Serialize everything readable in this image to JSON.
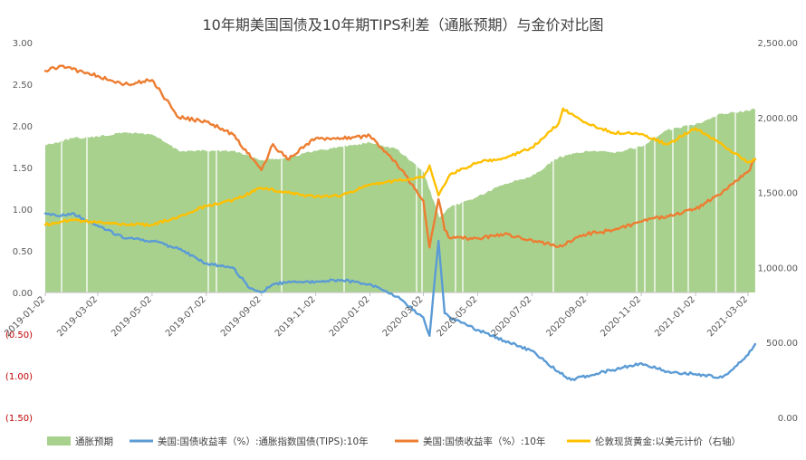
{
  "chart_data": {
    "type": "line",
    "title": "10年期美国国债及10年期TIPS利差（通胀预期）与金价对比图",
    "colors": {
      "inflation": "#A9D18E",
      "tips": "#5B9BD5",
      "nominal": "#ED7D31",
      "gold": "#FFC000",
      "negative_tick": "#C00000",
      "axis_text": "#595959"
    },
    "x_ticks": [
      "2019-01-02",
      "2019-03-02",
      "2019-05-02",
      "2019-07-02",
      "2019-09-02",
      "2019-11-02",
      "2020-01-02",
      "2020-03-02",
      "2020-05-02",
      "2020-07-02",
      "2020-09-02",
      "2020-11-02",
      "2021-01-02",
      "2021-03-02"
    ],
    "y_left": {
      "range": [
        -1.5,
        3.0
      ],
      "ticks": [
        {
          "v": 3.0,
          "label": "3.00"
        },
        {
          "v": 2.5,
          "label": "2.50"
        },
        {
          "v": 2.0,
          "label": "2.00"
        },
        {
          "v": 1.5,
          "label": "1.50"
        },
        {
          "v": 1.0,
          "label": "1.00"
        },
        {
          "v": 0.5,
          "label": "0.50"
        },
        {
          "v": 0.0,
          "label": "0.00"
        },
        {
          "v": -0.5,
          "label": "(0.50)"
        },
        {
          "v": -1.0,
          "label": "(1.00)"
        },
        {
          "v": -1.5,
          "label": "(1.50)"
        }
      ]
    },
    "y_right": {
      "range": [
        0,
        2500
      ],
      "ticks": [
        {
          "v": 2500,
          "label": "2,500.00"
        },
        {
          "v": 2000,
          "label": "2,000.00"
        },
        {
          "v": 1500,
          "label": "1,500.00"
        },
        {
          "v": 1000,
          "label": "1,000.00"
        },
        {
          "v": 500,
          "label": "500.00"
        },
        {
          "v": 0,
          "label": "0.00"
        }
      ]
    },
    "series": [
      {
        "name": "通胀预期",
        "type": "area",
        "axis": "left",
        "x": [
          "2019-01-02",
          "2019-02-01",
          "2019-03-02",
          "2019-04-01",
          "2019-05-02",
          "2019-06-01",
          "2019-07-02",
          "2019-08-01",
          "2019-09-02",
          "2019-10-01",
          "2019-11-02",
          "2019-12-01",
          "2020-01-02",
          "2020-02-01",
          "2020-03-02",
          "2020-03-20",
          "2020-04-01",
          "2020-05-02",
          "2020-06-01",
          "2020-07-02",
          "2020-08-01",
          "2020-09-02",
          "2020-10-01",
          "2020-11-02",
          "2020-12-01",
          "2021-01-02",
          "2021-02-01",
          "2021-03-02",
          "2021-03-10"
        ],
        "values": [
          1.77,
          1.85,
          1.87,
          1.92,
          1.9,
          1.7,
          1.7,
          1.7,
          1.59,
          1.62,
          1.7,
          1.75,
          1.8,
          1.72,
          1.45,
          0.9,
          1.02,
          1.15,
          1.3,
          1.4,
          1.62,
          1.7,
          1.68,
          1.75,
          1.95,
          2.02,
          2.15,
          2.18,
          2.2
        ]
      },
      {
        "name": "美国:国债收益率（%）:通胀指数国债(TIPS):10年",
        "type": "line",
        "axis": "left",
        "x": [
          "2019-01-02",
          "2019-01-20",
          "2019-02-01",
          "2019-03-02",
          "2019-04-01",
          "2019-05-02",
          "2019-06-01",
          "2019-06-20",
          "2019-07-02",
          "2019-08-01",
          "2019-08-20",
          "2019-09-02",
          "2019-09-15",
          "2019-10-01",
          "2019-11-02",
          "2019-12-01",
          "2020-01-02",
          "2020-02-01",
          "2020-03-02",
          "2020-03-09",
          "2020-03-19",
          "2020-03-26",
          "2020-04-01",
          "2020-05-02",
          "2020-06-01",
          "2020-07-02",
          "2020-08-01",
          "2020-08-15",
          "2020-09-02",
          "2020-10-01",
          "2020-11-02",
          "2020-12-01",
          "2021-01-02",
          "2021-02-01",
          "2021-03-02",
          "2021-03-10"
        ],
        "values": [
          0.95,
          0.92,
          0.95,
          0.8,
          0.65,
          0.62,
          0.52,
          0.42,
          0.35,
          0.3,
          0.05,
          0.0,
          0.1,
          0.12,
          0.13,
          0.15,
          0.1,
          -0.05,
          -0.3,
          -0.52,
          0.62,
          -0.25,
          -0.3,
          -0.45,
          -0.58,
          -0.7,
          -0.95,
          -1.05,
          -1.0,
          -0.93,
          -0.85,
          -0.95,
          -0.98,
          -1.02,
          -0.75,
          -0.62
        ]
      },
      {
        "name": "美国:国债收益率（%）:10年",
        "type": "line",
        "axis": "left",
        "x": [
          "2019-01-02",
          "2019-01-20",
          "2019-02-01",
          "2019-03-02",
          "2019-04-01",
          "2019-05-02",
          "2019-06-01",
          "2019-07-02",
          "2019-08-01",
          "2019-09-02",
          "2019-09-15",
          "2019-10-01",
          "2019-11-02",
          "2019-12-01",
          "2020-01-02",
          "2020-02-01",
          "2020-03-02",
          "2020-03-09",
          "2020-03-19",
          "2020-03-26",
          "2020-04-01",
          "2020-05-02",
          "2020-06-01",
          "2020-07-02",
          "2020-08-01",
          "2020-09-02",
          "2020-10-01",
          "2020-11-02",
          "2020-12-01",
          "2021-01-02",
          "2021-02-01",
          "2021-03-02",
          "2021-03-10"
        ],
        "values": [
          2.66,
          2.72,
          2.68,
          2.6,
          2.5,
          2.55,
          2.1,
          2.05,
          1.9,
          1.47,
          1.78,
          1.6,
          1.85,
          1.85,
          1.88,
          1.55,
          1.1,
          0.54,
          1.12,
          0.75,
          0.65,
          0.65,
          0.7,
          0.63,
          0.55,
          0.7,
          0.75,
          0.85,
          0.92,
          1.0,
          1.2,
          1.45,
          1.6
        ]
      },
      {
        "name": "伦敦现货黄金:以美元计价（右轴）",
        "type": "line",
        "axis": "right",
        "x": [
          "2019-01-02",
          "2019-02-01",
          "2019-03-02",
          "2019-04-01",
          "2019-05-02",
          "2019-06-01",
          "2019-07-02",
          "2019-08-01",
          "2019-09-02",
          "2019-10-01",
          "2019-11-02",
          "2019-12-01",
          "2020-01-02",
          "2020-02-01",
          "2020-03-02",
          "2020-03-09",
          "2020-03-19",
          "2020-04-01",
          "2020-05-02",
          "2020-06-01",
          "2020-07-02",
          "2020-08-01",
          "2020-08-06",
          "2020-09-02",
          "2020-10-01",
          "2020-11-02",
          "2020-12-01",
          "2021-01-02",
          "2021-02-01",
          "2021-03-02",
          "2021-03-10"
        ],
        "values": [
          1285,
          1318,
          1300,
          1290,
          1283,
          1340,
          1410,
          1450,
          1530,
          1500,
          1470,
          1480,
          1550,
          1580,
          1600,
          1680,
          1480,
          1620,
          1700,
          1730,
          1800,
          1960,
          2060,
          1960,
          1900,
          1890,
          1820,
          1930,
          1820,
          1700,
          1720
        ]
      }
    ]
  }
}
